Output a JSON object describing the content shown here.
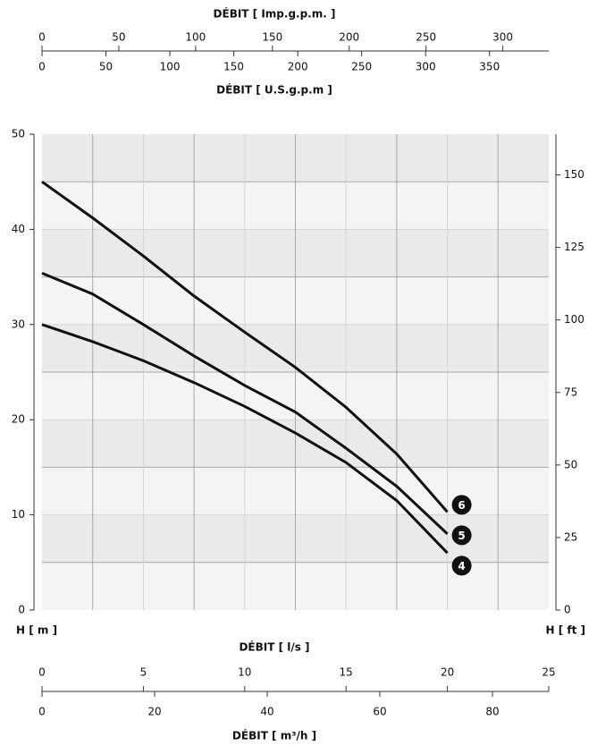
{
  "chart_data": {
    "type": "line",
    "xlabel": "DÉBIT [ l/s ]",
    "ylabel": "H [ m ]",
    "y2label": "H [ ft ]",
    "x": [
      0,
      2.5,
      5,
      7.5,
      10,
      12.5,
      15,
      17.5,
      20
    ],
    "series": [
      {
        "name": "4",
        "color": "#111111",
        "values": [
          30.0,
          28.2,
          26.2,
          23.9,
          21.4,
          18.6,
          15.5,
          11.5,
          6.0
        ]
      },
      {
        "name": "5",
        "color": "#111111",
        "values": [
          35.4,
          33.2,
          30.0,
          26.7,
          23.6,
          20.8,
          17.0,
          13.0,
          8.0
        ]
      },
      {
        "name": "6",
        "color": "#111111",
        "values": [
          45.0,
          41.2,
          37.2,
          33.0,
          29.2,
          25.5,
          21.3,
          16.4,
          10.3
        ]
      }
    ],
    "xlim": [
      0,
      25
    ],
    "xticks": [
      0,
      5,
      10,
      15,
      20,
      25
    ],
    "ylim": [
      0,
      50
    ],
    "yticks": [
      0,
      10,
      20,
      30,
      40,
      50
    ],
    "y2lim": [
      0,
      164.04
    ],
    "y2ticks": [
      0,
      25,
      50,
      75,
      100,
      125,
      150
    ],
    "xgrid": [
      2.5,
      5,
      7.5,
      10,
      12.5,
      15,
      17.5,
      20,
      22.5
    ],
    "ygrid": [
      5,
      10,
      15,
      20,
      25,
      30,
      35,
      40,
      45
    ],
    "grid": true,
    "top_axes": [
      {
        "label": "DÉBIT [ Imp.g.p.m. ]",
        "lim": [
          0,
          329.9
        ],
        "ticks": [
          0,
          50,
          100,
          150,
          200,
          250,
          300
        ]
      },
      {
        "label": "DÉBIT [ U.S.g.p.m ]",
        "lim": [
          0,
          396.3
        ],
        "ticks": [
          0,
          50,
          100,
          150,
          200,
          250,
          300,
          350
        ]
      }
    ],
    "bottom_axis": {
      "label": "DÉBIT [ m³/h ]",
      "lim": [
        0,
        90
      ],
      "ticks": [
        0,
        20,
        40,
        60,
        80
      ]
    }
  }
}
